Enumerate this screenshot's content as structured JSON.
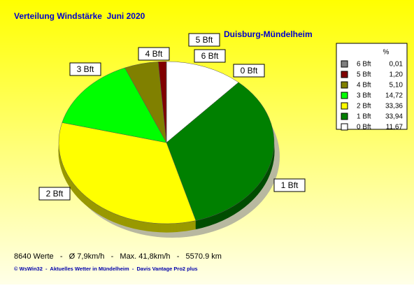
{
  "chart_data": {
    "type": "pie",
    "title": "Verteilung Windstärke  Juni 2020",
    "subtitle": "Duisburg-Mündelheim",
    "categories": [
      "0 Bft",
      "1 Bft",
      "2 Bft",
      "3 Bft",
      "4 Bft",
      "5 Bft",
      "6 Bft"
    ],
    "values": [
      11.67,
      33.94,
      33.36,
      14.72,
      5.1,
      1.2,
      0.01
    ],
    "value_labels": [
      "11,67",
      "33,94",
      "33,36",
      "14,72",
      "5,10",
      "1,20",
      "0,01"
    ],
    "colors": [
      "#ffffff",
      "#008000",
      "#ffff00",
      "#00ff00",
      "#808000",
      "#800000",
      "#808080"
    ],
    "legend_header": "%",
    "legend": "right",
    "footer": "8640 Werte   -   Ø 7,9km/h   -   Max. 41,8km/h   -   5570.9 km",
    "credit": "© WsWin32  -  Aktuelles Wetter in Mündelheim  -  Davis Vantage Pro2 plus"
  }
}
